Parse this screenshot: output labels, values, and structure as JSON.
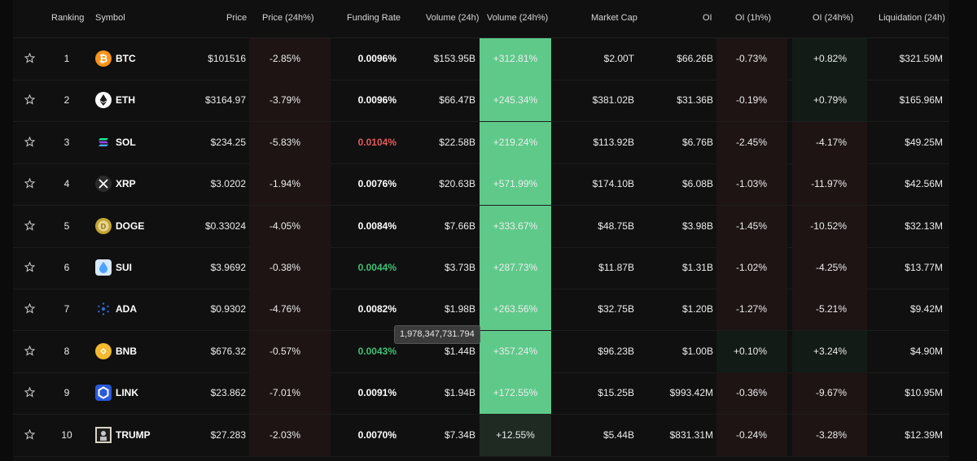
{
  "headers": {
    "ranking": "Ranking",
    "symbol": "Symbol",
    "price": "Price",
    "price_24h": "Price (24h%)",
    "funding_rate": "Funding Rate",
    "volume_24h": "Volume (24h)",
    "volume_24h_pct": "Volume (24h%)",
    "market_cap": "Market Cap",
    "oi": "OI",
    "oi_1h": "OI (1h%)",
    "oi_24h": "OI (24h%)",
    "liquidation_24h": "Liquidation (24h)"
  },
  "colors": {
    "volume_green": "#5fc98a",
    "funding_red": "#e15a5a",
    "funding_green": "#3fbf74",
    "neg_bg": "#1e1414",
    "pos_bg": "#121b16"
  },
  "rows": [
    {
      "rank": "1",
      "symbol": "BTC",
      "icon": "btc-icon",
      "price": "$101516",
      "price_24h": "-2.85%",
      "funding": "0.0096%",
      "funding_state": "neutral",
      "volume": "$153.95B",
      "volume_pct": "+312.81%",
      "market_cap": "$2.00T",
      "oi": "$66.26B",
      "oi_1h": "-0.73%",
      "oi_24h": "+0.82%",
      "liquidation": "$321.59M"
    },
    {
      "rank": "2",
      "symbol": "ETH",
      "icon": "eth-icon",
      "price": "$3164.97",
      "price_24h": "-3.79%",
      "funding": "0.0096%",
      "funding_state": "neutral",
      "volume": "$66.47B",
      "volume_pct": "+245.34%",
      "market_cap": "$381.02B",
      "oi": "$31.36B",
      "oi_1h": "-0.19%",
      "oi_24h": "+0.79%",
      "liquidation": "$165.96M"
    },
    {
      "rank": "3",
      "symbol": "SOL",
      "icon": "sol-icon",
      "price": "$234.25",
      "price_24h": "-5.83%",
      "funding": "0.0104%",
      "funding_state": "red",
      "volume": "$22.58B",
      "volume_pct": "+219.24%",
      "market_cap": "$113.92B",
      "oi": "$6.76B",
      "oi_1h": "-2.45%",
      "oi_24h": "-4.17%",
      "liquidation": "$49.25M"
    },
    {
      "rank": "4",
      "symbol": "XRP",
      "icon": "xrp-icon",
      "price": "$3.0202",
      "price_24h": "-1.94%",
      "funding": "0.0076%",
      "funding_state": "neutral",
      "volume": "$20.63B",
      "volume_pct": "+571.99%",
      "market_cap": "$174.10B",
      "oi": "$6.08B",
      "oi_1h": "-1.03%",
      "oi_24h": "-11.97%",
      "liquidation": "$42.56M"
    },
    {
      "rank": "5",
      "symbol": "DOGE",
      "icon": "doge-icon",
      "price": "$0.33024",
      "price_24h": "-4.05%",
      "funding": "0.0084%",
      "funding_state": "neutral",
      "volume": "$7.66B",
      "volume_pct": "+333.67%",
      "market_cap": "$48.75B",
      "oi": "$3.98B",
      "oi_1h": "-1.45%",
      "oi_24h": "-10.52%",
      "liquidation": "$32.13M"
    },
    {
      "rank": "6",
      "symbol": "SUI",
      "icon": "sui-icon",
      "price": "$3.9692",
      "price_24h": "-0.38%",
      "funding": "0.0044%",
      "funding_state": "green",
      "volume": "$3.73B",
      "volume_pct": "+287.73%",
      "market_cap": "$11.87B",
      "oi": "$1.31B",
      "oi_1h": "-1.02%",
      "oi_24h": "-4.25%",
      "liquidation": "$13.77M"
    },
    {
      "rank": "7",
      "symbol": "ADA",
      "icon": "ada-icon",
      "price": "$0.9302",
      "price_24h": "-4.76%",
      "funding": "0.0082%",
      "funding_state": "neutral",
      "volume": "$1.98B",
      "volume_pct": "+263.56%",
      "market_cap": "$32.75B",
      "oi": "$1.20B",
      "oi_1h": "-1.27%",
      "oi_24h": "-5.21%",
      "liquidation": "$9.42M"
    },
    {
      "rank": "8",
      "symbol": "BNB",
      "icon": "bnb-icon",
      "price": "$676.32",
      "price_24h": "-0.57%",
      "funding": "0.0043%",
      "funding_state": "green",
      "volume": "$1.44B",
      "volume_pct": "+357.24%",
      "market_cap": "$96.23B",
      "oi": "$1.00B",
      "oi_1h": "+0.10%",
      "oi_24h": "+3.24%",
      "liquidation": "$4.90M"
    },
    {
      "rank": "9",
      "symbol": "LINK",
      "icon": "link-icon",
      "price": "$23.862",
      "price_24h": "-7.01%",
      "funding": "0.0091%",
      "funding_state": "neutral",
      "volume": "$1.94B",
      "volume_pct": "+172.55%",
      "market_cap": "$15.25B",
      "oi": "$993.42M",
      "oi_1h": "-0.36%",
      "oi_24h": "-9.67%",
      "liquidation": "$10.95M"
    },
    {
      "rank": "10",
      "symbol": "TRUMP",
      "icon": "trump-icon",
      "price": "$27.283",
      "price_24h": "-2.03%",
      "funding": "0.0070%",
      "funding_state": "neutral",
      "volume": "$7.34B",
      "volume_pct": "+12.55%",
      "market_cap": "$5.44B",
      "oi": "$831.31M",
      "oi_1h": "-0.24%",
      "oi_24h": "-3.28%",
      "liquidation": "$12.39M"
    }
  ],
  "tooltip": {
    "text": "1,978,347,731.794"
  }
}
